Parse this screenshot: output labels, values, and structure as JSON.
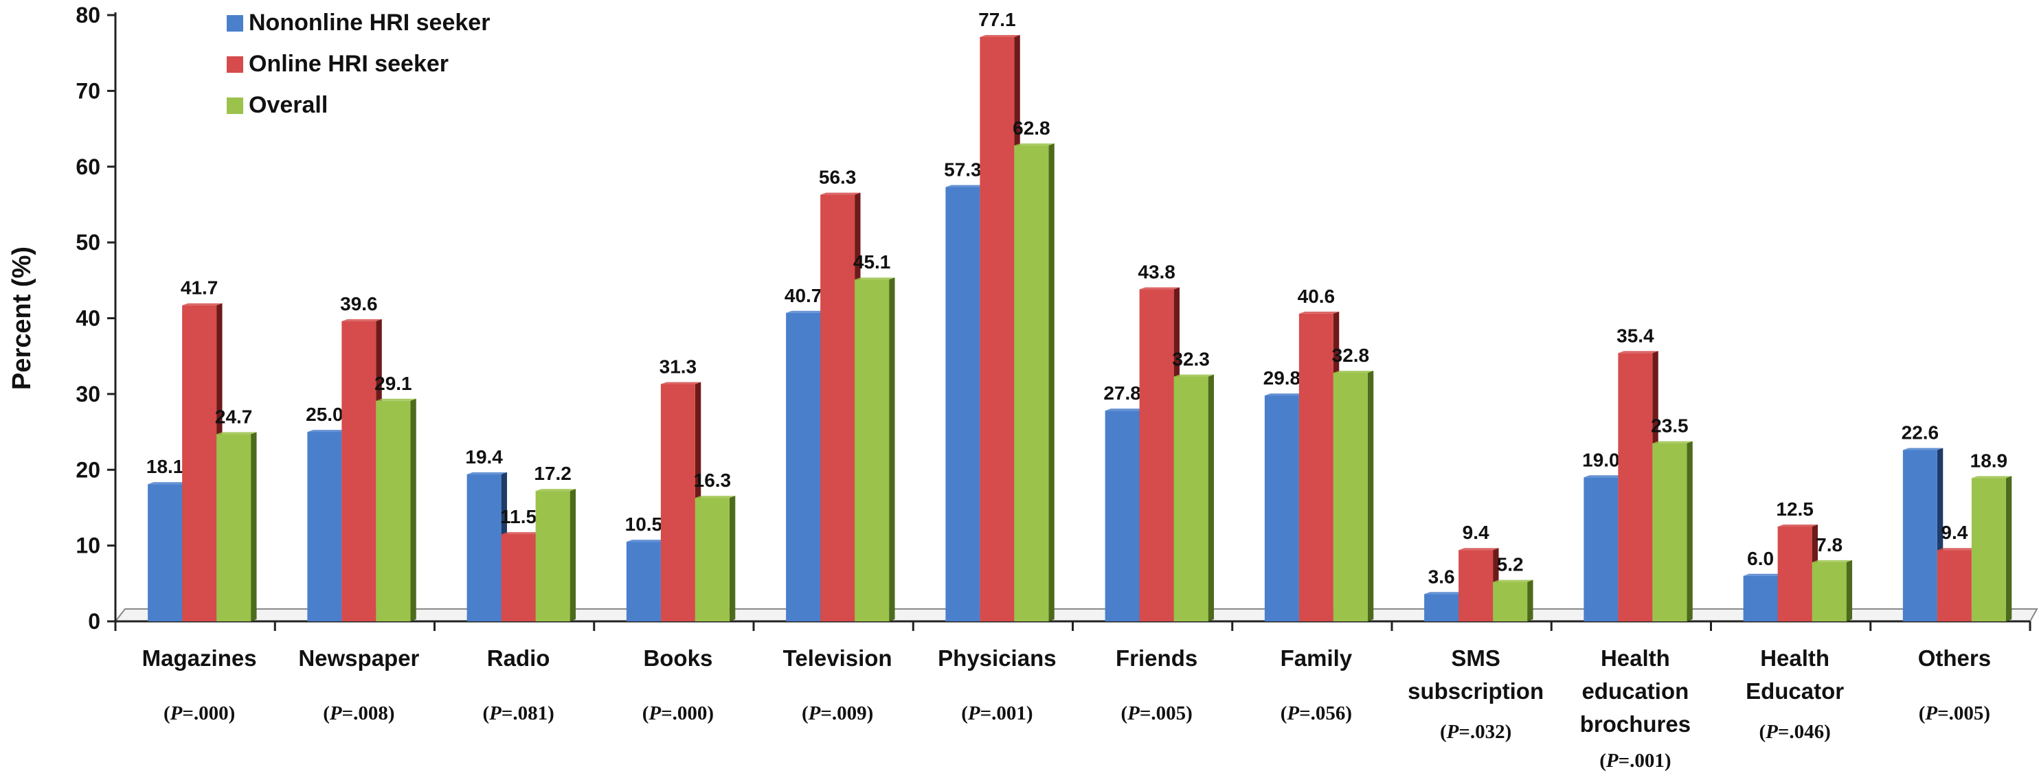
{
  "chart_data": {
    "type": "bar",
    "ylabel": "Percent (%)",
    "ylim": [
      0,
      80
    ],
    "yticks": [
      "0",
      "10",
      "20",
      "30",
      "40",
      "50",
      "60",
      "70",
      "80"
    ],
    "grid": false,
    "legend_position": "top-left",
    "categories": [
      {
        "label": [
          "Magazines"
        ],
        "p": "=.000"
      },
      {
        "label": [
          "Newspaper"
        ],
        "p": "=.008"
      },
      {
        "label": [
          "Radio"
        ],
        "p": "=.081"
      },
      {
        "label": [
          "Books"
        ],
        "p": "=.000"
      },
      {
        "label": [
          "Television"
        ],
        "p": "=.009"
      },
      {
        "label": [
          "Physicians"
        ],
        "p": "=.001"
      },
      {
        "label": [
          "Friends"
        ],
        "p": "=.005"
      },
      {
        "label": [
          "Family"
        ],
        "p": "=.056"
      },
      {
        "label": [
          "SMS",
          "subscription"
        ],
        "p": "=.032"
      },
      {
        "label": [
          "Health",
          "education",
          "brochures"
        ],
        "p": "=.001"
      },
      {
        "label": [
          "Health",
          "Educator"
        ],
        "p": "=.046"
      },
      {
        "label": [
          "Others"
        ],
        "p": "=.005"
      }
    ],
    "series": [
      {
        "name": "Nononline HRI seeker",
        "color": "#4a7fcc",
        "side_color": "#1f3c66",
        "values": [
          18.1,
          25.0,
          19.4,
          10.5,
          40.7,
          57.3,
          27.8,
          29.8,
          3.6,
          19.0,
          6.0,
          22.6
        ],
        "labels": [
          "18.1",
          "25.0",
          "19.4",
          "10.5",
          "40.7",
          "57.3",
          "27.8",
          "29.8",
          "3.6",
          "19.0",
          "6.0",
          "22.6"
        ]
      },
      {
        "name": "Online HRI seeker",
        "color": "#d64b4b",
        "side_color": "#6e1a1a",
        "values": [
          41.7,
          39.6,
          11.5,
          31.3,
          56.3,
          77.1,
          43.8,
          40.6,
          9.4,
          35.4,
          12.5,
          9.4
        ],
        "labels": [
          "41.7",
          "39.6",
          "11.5",
          "31.3",
          "56.3",
          "77.1",
          "43.8",
          "40.6",
          "9.4",
          "35.4",
          "12.5",
          "9.4"
        ]
      },
      {
        "name": "Overall",
        "color": "#9bc24a",
        "side_color": "#4d6b1c",
        "values": [
          24.7,
          29.1,
          17.2,
          16.3,
          45.1,
          62.8,
          32.3,
          32.8,
          5.2,
          23.5,
          7.8,
          18.9
        ],
        "labels": [
          "24.7",
          "29.1",
          "17.2",
          "16.3",
          "45.1",
          "62.8",
          "32.3",
          "32.8",
          "5.2",
          "23.5",
          "7.8",
          "18.9"
        ]
      }
    ],
    "p_prefix": "P"
  }
}
